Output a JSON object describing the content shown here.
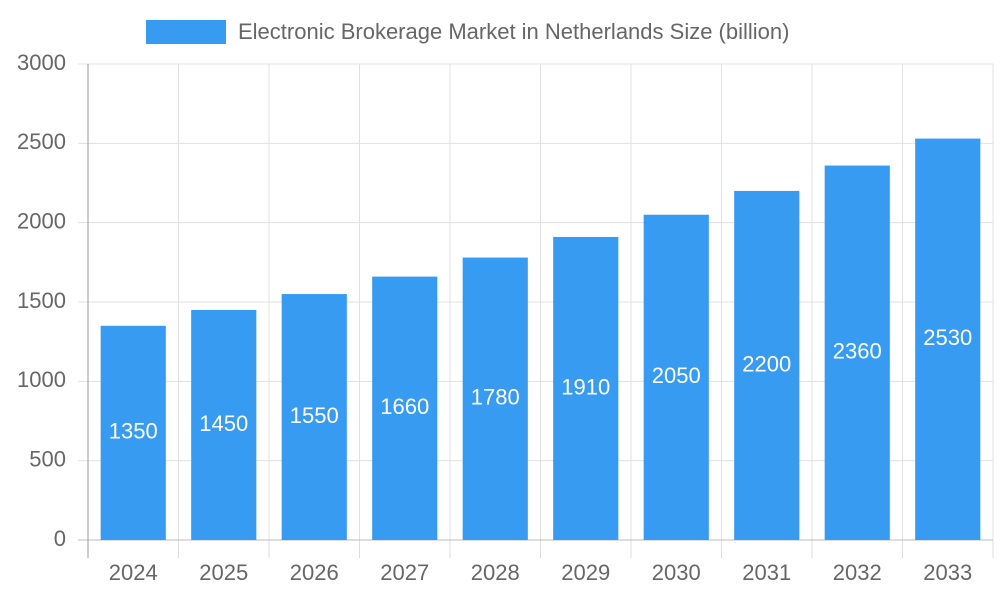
{
  "chart_data": {
    "type": "bar",
    "categories": [
      "2024",
      "2025",
      "2026",
      "2027",
      "2028",
      "2029",
      "2030",
      "2031",
      "2032",
      "2033"
    ],
    "series": [
      {
        "name": "Electronic Brokerage Market in Netherlands Size (billion)",
        "color": "#379cf1",
        "values": [
          1350,
          1450,
          1550,
          1660,
          1780,
          1910,
          2050,
          2200,
          2360,
          2530
        ]
      }
    ],
    "ylim": [
      0,
      3000
    ],
    "yticks": [
      0,
      500,
      1000,
      1500,
      2000,
      2500,
      3000
    ],
    "grid": true,
    "legend": "top",
    "data_labels": true
  }
}
